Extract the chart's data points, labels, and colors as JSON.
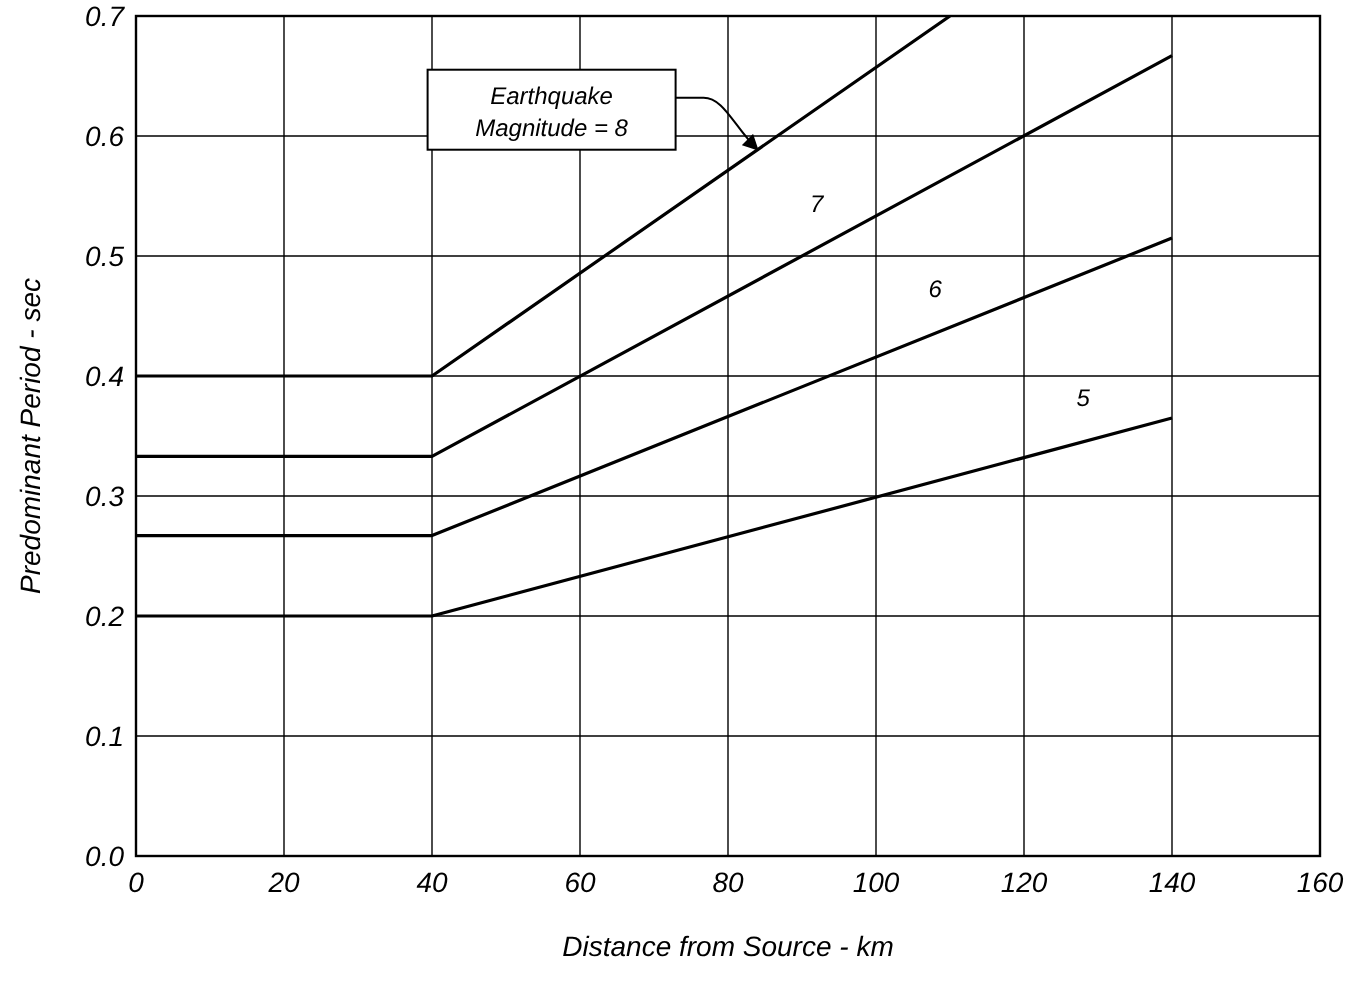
{
  "chart_data": {
    "type": "line",
    "xlabel": "Distance from Source - km",
    "ylabel": "Predominant Period - sec",
    "xlim": [
      0,
      160
    ],
    "xticks": [
      0,
      20,
      40,
      60,
      80,
      100,
      120,
      140,
      160
    ],
    "ylim": [
      0,
      0.7
    ],
    "yticks": [
      {
        "value": 0,
        "label": "0.0"
      },
      0.1,
      0.2,
      0.3,
      0.4,
      0.5,
      0.6,
      0.7
    ],
    "grid": true,
    "marker": "none",
    "line_style": "solid",
    "series": [
      {
        "color": "#000000",
        "x": [
          0,
          40,
          110
        ],
        "values": [
          0.4,
          0.4,
          0.7
        ]
      },
      {
        "name": "7",
        "color": "#000000",
        "x": [
          0,
          40,
          140
        ],
        "values": [
          0.333,
          0.333,
          0.667
        ]
      },
      {
        "name": "6",
        "color": "#000000",
        "x": [
          0,
          40,
          140
        ],
        "values": [
          0.267,
          0.267,
          0.515
        ]
      },
      {
        "name": "5",
        "color": "#000000",
        "x": [
          0,
          40,
          140
        ],
        "values": [
          0.2,
          0.2,
          0.365
        ]
      }
    ],
    "annotations": [
      "Earthquake\nMagnitude = 8"
    ]
  }
}
